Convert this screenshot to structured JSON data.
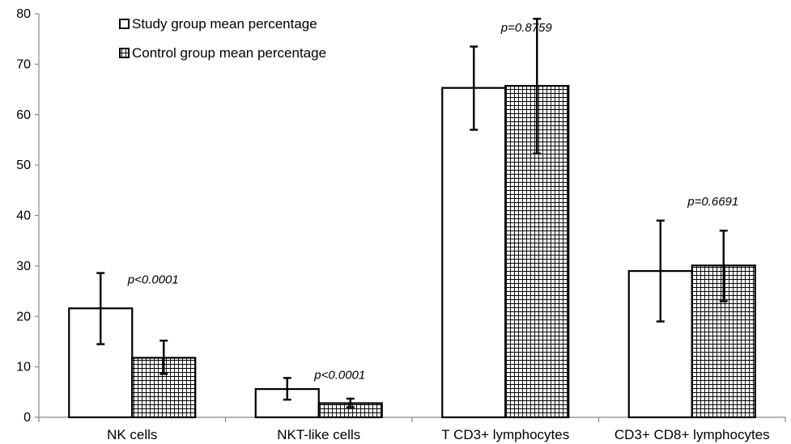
{
  "chart_data": {
    "type": "bar",
    "categories": [
      "NK cells",
      "NKT-like cells",
      "T CD3+ lymphocytes",
      "CD3+ CD8+ lymphocytes"
    ],
    "series": [
      {
        "name": "Study group mean percentage",
        "pattern": "plain",
        "fill": "#ffffff",
        "values": [
          21.6,
          5.6,
          65.3,
          29.0
        ],
        "error_low": [
          14.5,
          3.5,
          57.0,
          19.0
        ],
        "error_high": [
          28.6,
          7.8,
          73.5,
          39.0
        ]
      },
      {
        "name": "Control group mean percentage",
        "pattern": "grid",
        "fill": "#ffffff",
        "values": [
          11.8,
          2.8,
          65.7,
          30.1
        ],
        "error_low": [
          8.6,
          2.0,
          52.3,
          23.0
        ],
        "error_high": [
          15.2,
          3.7,
          79.0,
          37.0
        ]
      }
    ],
    "annotations": [
      {
        "category_index": 0,
        "text": "p<0.0001",
        "y": 26.5
      },
      {
        "category_index": 1,
        "text": "p<0.0001",
        "y": 7.6
      },
      {
        "category_index": 2,
        "text": "p=0.8759",
        "y": 76.5
      },
      {
        "category_index": 3,
        "text": "p=0.6691",
        "y": 42.0
      }
    ],
    "ylim": [
      0,
      80
    ],
    "yticks": [
      0,
      10,
      20,
      30,
      40,
      50,
      60,
      70,
      80
    ],
    "title": "",
    "xlabel": "",
    "ylabel": "",
    "grid": false,
    "legend_position": "top-left"
  }
}
